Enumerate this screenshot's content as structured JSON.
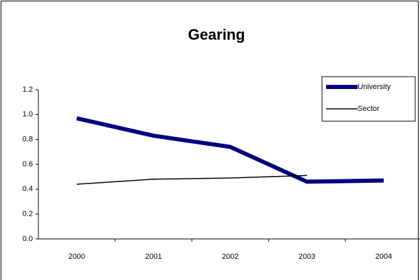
{
  "chart_data": {
    "type": "line",
    "title": "Gearing",
    "categories": [
      "2000",
      "2001",
      "2002",
      "2003",
      "2004"
    ],
    "series": [
      {
        "name": "University",
        "color": "#000080",
        "values": [
          0.97,
          0.83,
          0.74,
          0.46,
          0.47
        ]
      },
      {
        "name": "Sector",
        "color": "#000000",
        "values": [
          0.44,
          0.48,
          0.49,
          0.51,
          null
        ]
      }
    ],
    "ylim": [
      0,
      1.2
    ],
    "yticks": [
      {
        "value": 0,
        "label": "0.0"
      },
      {
        "value": 0.2,
        "label": "0.2"
      },
      {
        "value": 0.4,
        "label": "0.4"
      },
      {
        "value": 0.6,
        "label": "0.6"
      },
      {
        "value": 0.8,
        "label": "0.8"
      },
      {
        "value": 1,
        "label": "1.0"
      },
      {
        "value": 1.2,
        "label": "1.2"
      }
    ],
    "legend": "upper right"
  }
}
